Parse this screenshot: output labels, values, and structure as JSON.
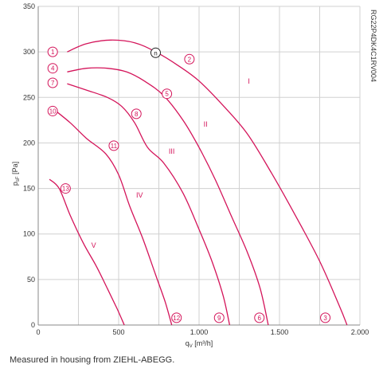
{
  "chart_data": {
    "type": "line",
    "xlabel": "q",
    "xlabel_sub": "V",
    "xlabel_unit": " [m³/h]",
    "ylabel": "p",
    "ylabel_sub": "sF",
    "ylabel_unit": " [Pa]",
    "xlim": [
      0,
      2000
    ],
    "ylim": [
      0,
      350
    ],
    "x_ticks": [
      0,
      500,
      1000,
      1500,
      2000
    ],
    "x_tick_labels": [
      "0",
      "500",
      "1.000",
      "1.500",
      "2.000"
    ],
    "y_ticks": [
      0,
      50,
      100,
      150,
      200,
      250,
      300,
      350
    ],
    "y_tick_labels": [
      "0",
      "50",
      "100",
      "150",
      "200",
      "250",
      "300",
      "350"
    ],
    "grid": true,
    "side_code": "RG22P4DK4C1RV004",
    "series": [
      {
        "name": "I",
        "points": [
          [
            180,
            300
          ],
          [
            300,
            309
          ],
          [
            450,
            313
          ],
          [
            600,
            310
          ],
          [
            730,
            300
          ],
          [
            870,
            285
          ],
          [
            1000,
            268
          ],
          [
            1150,
            241
          ],
          [
            1300,
            210
          ],
          [
            1450,
            167
          ],
          [
            1600,
            120
          ],
          [
            1750,
            70
          ],
          [
            1870,
            22
          ],
          [
            1920,
            0
          ]
        ]
      },
      {
        "name": "II",
        "points": [
          [
            180,
            278
          ],
          [
            300,
            282
          ],
          [
            430,
            282
          ],
          [
            550,
            278
          ],
          [
            660,
            268
          ],
          [
            780,
            252
          ],
          [
            900,
            225
          ],
          [
            1000,
            195
          ],
          [
            1100,
            160
          ],
          [
            1200,
            120
          ],
          [
            1300,
            80
          ],
          [
            1380,
            40
          ],
          [
            1430,
            0
          ]
        ]
      },
      {
        "name": "III",
        "points": [
          [
            180,
            265
          ],
          [
            300,
            258
          ],
          [
            430,
            250
          ],
          [
            520,
            240
          ],
          [
            600,
            222
          ],
          [
            680,
            195
          ],
          [
            780,
            178
          ],
          [
            900,
            145
          ],
          [
            1000,
            105
          ],
          [
            1080,
            70
          ],
          [
            1150,
            32
          ],
          [
            1190,
            0
          ]
        ]
      },
      {
        "name": "IV",
        "points": [
          [
            110,
            235
          ],
          [
            200,
            222
          ],
          [
            300,
            205
          ],
          [
            420,
            188
          ],
          [
            500,
            165
          ],
          [
            570,
            130
          ],
          [
            650,
            95
          ],
          [
            730,
            55
          ],
          [
            790,
            25
          ],
          [
            830,
            0
          ]
        ]
      },
      {
        "name": "V",
        "points": [
          [
            70,
            160
          ],
          [
            130,
            150
          ],
          [
            200,
            120
          ],
          [
            280,
            90
          ],
          [
            360,
            65
          ],
          [
            430,
            40
          ],
          [
            490,
            18
          ],
          [
            535,
            0
          ]
        ]
      }
    ],
    "markers": [
      {
        "label": "1",
        "x": 90,
        "y": 300
      },
      {
        "label": "2",
        "x": 940,
        "y": 292
      },
      {
        "label": "3",
        "x": 1785,
        "y": 8
      },
      {
        "label": "4",
        "x": 90,
        "y": 282
      },
      {
        "label": "5",
        "x": 800,
        "y": 254
      },
      {
        "label": "6",
        "x": 1375,
        "y": 8
      },
      {
        "label": "7",
        "x": 90,
        "y": 266
      },
      {
        "label": "8",
        "x": 610,
        "y": 232
      },
      {
        "label": "9",
        "x": 1125,
        "y": 8
      },
      {
        "label": "10",
        "x": 90,
        "y": 235
      },
      {
        "label": "11",
        "x": 470,
        "y": 197
      },
      {
        "label": "12",
        "x": 860,
        "y": 8
      },
      {
        "label": "13",
        "x": 170,
        "y": 150
      }
    ],
    "roman_labels": [
      {
        "label": "I",
        "x": 1310,
        "y": 265
      },
      {
        "label": "II",
        "x": 1040,
        "y": 218
      },
      {
        "label": "III",
        "x": 830,
        "y": 188
      },
      {
        "label": "IV",
        "x": 630,
        "y": 140
      },
      {
        "label": "V",
        "x": 345,
        "y": 85
      }
    ],
    "operating_point": {
      "label": "n",
      "x": 730,
      "y": 299
    }
  },
  "caption": "Measured in housing from ZIEHL-ABEGG."
}
